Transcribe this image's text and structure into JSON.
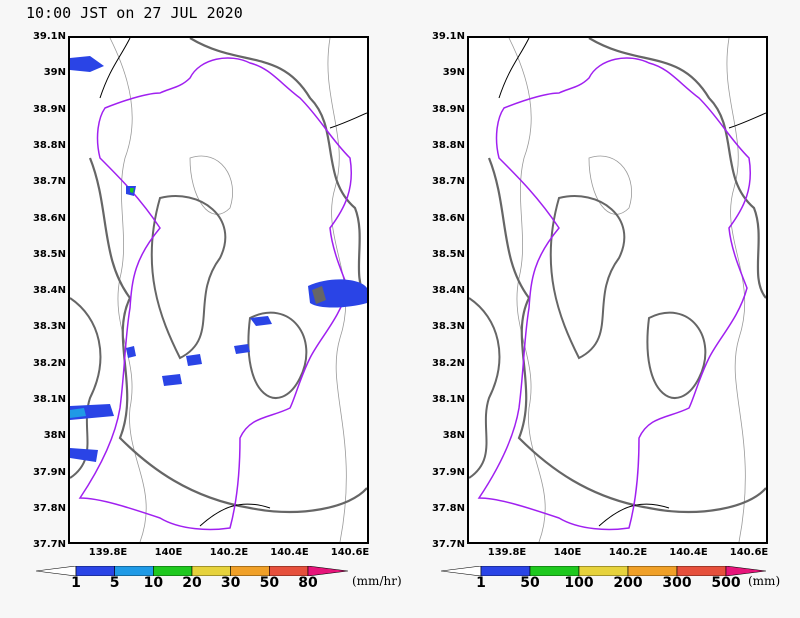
{
  "title": "10:00 JST on 27 JUL 2020",
  "lat_labels": [
    "39.1N",
    "39N",
    "38.9N",
    "38.8N",
    "38.7N",
    "38.6N",
    "38.5N",
    "38.4N",
    "38.3N",
    "38.2N",
    "38.1N",
    "38N",
    "37.9N",
    "37.8N",
    "37.7N"
  ],
  "lon_labels": [
    "139.8E",
    "140E",
    "140.2E",
    "140.4E",
    "140.6E"
  ],
  "colors": {
    "boundary": "#a020f0",
    "coast": "#000000",
    "contour": "#666666"
  },
  "left_panel": {
    "name": "hourly-precipitation",
    "colorbar": {
      "labels": [
        "1",
        "5",
        "10",
        "20",
        "30",
        "50",
        "80"
      ],
      "colors": [
        "#ffffff",
        "#2a44e6",
        "#1f9ae6",
        "#1ec81e",
        "#e6d23c",
        "#f0a028",
        "#e6503c",
        "#e6147a"
      ],
      "unit": "(mm/hr)"
    }
  },
  "right_panel": {
    "name": "accumulated-precipitation",
    "colorbar": {
      "labels": [
        "1",
        "50",
        "100",
        "200",
        "300",
        "500"
      ],
      "colors": [
        "#ffffff",
        "#2a44e6",
        "#1ec81e",
        "#e6d23c",
        "#f0a028",
        "#e6503c",
        "#e6147a"
      ],
      "unit": "(mm)"
    }
  }
}
